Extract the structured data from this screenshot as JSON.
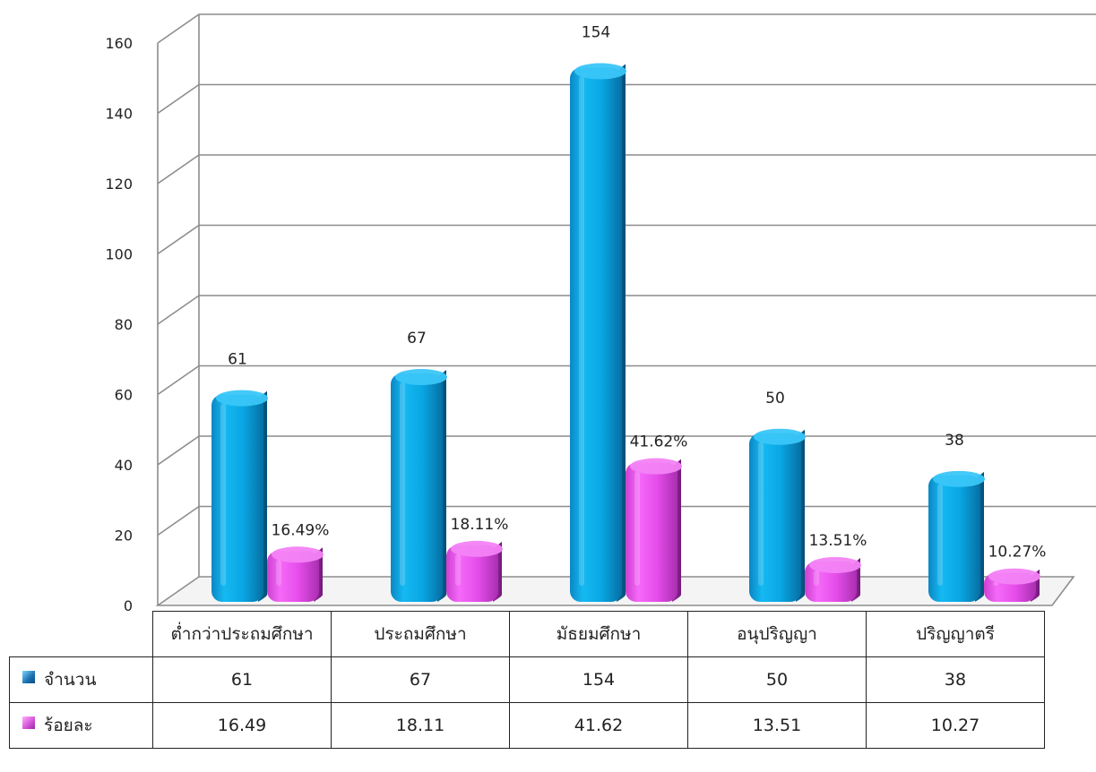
{
  "chart_data": {
    "type": "bar",
    "categories": [
      "ต่ำกว่าประถมศึกษา",
      "ประถมศึกษา",
      "มัธยมศึกษา",
      "อนุปริญญา",
      "ปริญญาตรี"
    ],
    "series": [
      {
        "name": "จำนวน",
        "values": [
          61,
          67,
          154,
          50,
          38
        ],
        "labels": [
          "61",
          "67",
          "154",
          "50",
          "38"
        ],
        "table_values": [
          "61",
          "67",
          "154",
          "50",
          "38"
        ],
        "color": "#0aa8e6"
      },
      {
        "name": "ร้อยละ",
        "values": [
          16.49,
          18.11,
          41.62,
          13.51,
          10.27
        ],
        "labels": [
          "16.49%",
          "18.11%",
          "41.62%",
          "13.51%",
          "10.27%"
        ],
        "table_values": [
          "16.49",
          "18.11",
          "41.62",
          "13.51",
          "10.27"
        ],
        "color": "#ec4ef0"
      }
    ],
    "ylim": [
      0,
      160
    ],
    "yticks": [
      "0",
      "20",
      "40",
      "60",
      "80",
      "100",
      "120",
      "140",
      "160"
    ],
    "grid": true,
    "legend": "data-table"
  }
}
